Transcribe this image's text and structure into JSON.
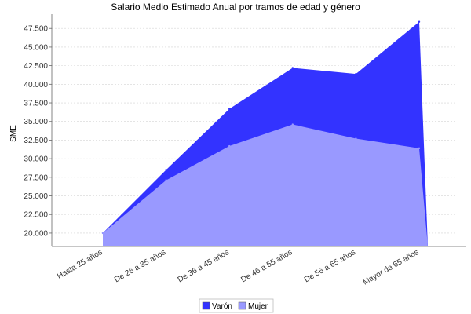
{
  "chart_data": {
    "type": "area",
    "title": "Salario Medio Estimado Anual por tramos de edad y género",
    "xlabel": "",
    "ylabel": "SME",
    "categories": [
      "Hasta 25  años",
      "De 26  a 35  años",
      "De 36  a 45  años",
      "De 46 a 55  años",
      "De 56  a 65  años",
      "Mayor de 65  años"
    ],
    "ylim": [
      18200,
      49000
    ],
    "yticks": [
      20000,
      22500,
      25000,
      27500,
      30000,
      32500,
      35000,
      37500,
      40000,
      42500,
      45000,
      47500
    ],
    "ytick_labels": [
      "20.000",
      "22.500",
      "25.000",
      "27.500",
      "30.000",
      "32.500",
      "35.000",
      "37.500",
      "40.000",
      "42.500",
      "45.000",
      "47.500"
    ],
    "grid": true,
    "legend_position": "bottom-center",
    "series": [
      {
        "name": "Varón",
        "color": "#3333ff",
        "values": [
          20000,
          28500,
          36700,
          42200,
          41400,
          48400
        ]
      },
      {
        "name": "Mujer",
        "color": "#9999ff",
        "values": [
          20000,
          27100,
          31700,
          34600,
          32700,
          31400
        ]
      }
    ]
  }
}
